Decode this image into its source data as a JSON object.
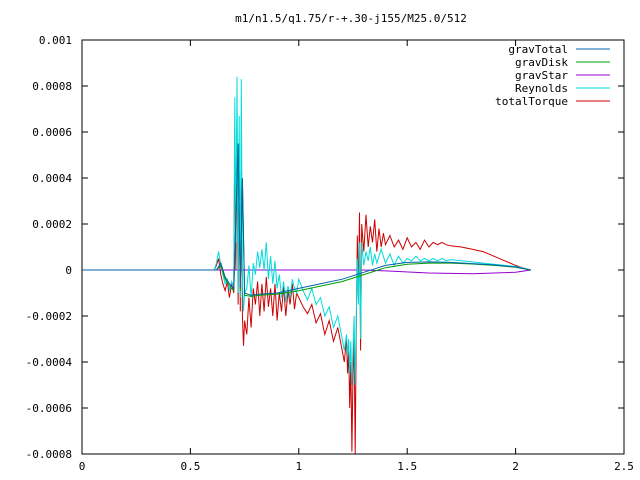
{
  "chart_data": {
    "type": "line",
    "title": "m1/n1.5/q1.75/r-+.30-j155/M25.0/512",
    "xlabel": "",
    "ylabel": "",
    "xlim": [
      0,
      2.5
    ],
    "ylim": [
      -0.0008,
      0.001
    ],
    "grid": false,
    "legend_position": "top-right",
    "x_ticks": [
      {
        "value": 0,
        "label": "0"
      },
      {
        "value": 0.5,
        "label": "0.5"
      },
      {
        "value": 1,
        "label": "1"
      },
      {
        "value": 1.5,
        "label": "1.5"
      },
      {
        "value": 2,
        "label": "2"
      },
      {
        "value": 2.5,
        "label": "2.5"
      }
    ],
    "y_ticks": [
      {
        "value": -0.0008,
        "label": "-0.0008"
      },
      {
        "value": -0.0006,
        "label": "-0.0006"
      },
      {
        "value": -0.0004,
        "label": "-0.0004"
      },
      {
        "value": -0.0002,
        "label": "-0.0002"
      },
      {
        "value": 0,
        "label": "0"
      },
      {
        "value": 0.0002,
        "label": "0.0002"
      },
      {
        "value": 0.0004,
        "label": "0.0004"
      },
      {
        "value": 0.0006,
        "label": "0.0006"
      },
      {
        "value": 0.0008,
        "label": "0.0008"
      },
      {
        "value": 0.001,
        "label": "0.001"
      }
    ],
    "series": [
      {
        "name": "gravTotal",
        "color": "#0060ad",
        "x": [
          0,
          0.62,
          0.64,
          0.66,
          0.68,
          0.7,
          0.72,
          0.73,
          0.74,
          0.75,
          0.78,
          0.82,
          0.9,
          1.0,
          1.1,
          1.2,
          1.3,
          1.4,
          1.5,
          1.6,
          1.7,
          1.8,
          1.9,
          2.0,
          2.04,
          2.07
        ],
        "y": [
          0,
          0,
          3e-05,
          -3e-05,
          -6e-05,
          -8e-05,
          0.00055,
          -8e-05,
          0.0004,
          -0.0001,
          -0.00011,
          -0.000105,
          -0.0001,
          -8e-05,
          -6e-05,
          -4e-05,
          -1e-05,
          2e-05,
          3.3e-05,
          3.5e-05,
          3.3e-05,
          2.8e-05,
          2.2e-05,
          1.3e-05,
          6e-06,
          0
        ]
      },
      {
        "name": "gravDisk",
        "color": "#009e00",
        "x": [
          0,
          0.62,
          0.64,
          0.66,
          0.68,
          0.7,
          0.72,
          0.73,
          0.74,
          0.75,
          0.78,
          0.82,
          0.9,
          1.0,
          1.1,
          1.2,
          1.3,
          1.4,
          1.5,
          1.6,
          1.7,
          1.8,
          1.9,
          2.0,
          2.04,
          2.07
        ],
        "y": [
          0,
          0,
          2e-05,
          -4e-05,
          -7e-05,
          -9e-05,
          0.00054,
          -9e-05,
          0.00039,
          -0.00011,
          -0.000115,
          -0.00011,
          -0.000105,
          -9e-05,
          -7e-05,
          -5e-05,
          -2e-05,
          1e-05,
          2.5e-05,
          3e-05,
          3e-05,
          2.6e-05,
          2e-05,
          1.2e-05,
          5e-06,
          0
        ]
      },
      {
        "name": "gravStar",
        "color": "#9400d3",
        "x": [
          0,
          0.62,
          0.8,
          1.0,
          1.2,
          1.3,
          1.4,
          1.6,
          1.8,
          2.0,
          2.07
        ],
        "y": [
          0,
          0,
          0,
          0,
          0,
          0,
          -4e-06,
          -1.3e-05,
          -1.6e-05,
          -1e-05,
          0
        ]
      },
      {
        "name": "Reynolds",
        "color": "#00dcdc",
        "x": [
          0,
          0.61,
          0.62,
          0.63,
          0.64,
          0.65,
          0.66,
          0.67,
          0.68,
          0.69,
          0.7,
          0.705,
          0.71,
          0.715,
          0.72,
          0.725,
          0.73,
          0.735,
          0.74,
          0.745,
          0.75,
          0.76,
          0.77,
          0.78,
          0.79,
          0.8,
          0.81,
          0.82,
          0.83,
          0.84,
          0.85,
          0.86,
          0.87,
          0.88,
          0.89,
          0.9,
          0.91,
          0.92,
          0.93,
          0.94,
          0.95,
          0.96,
          0.97,
          0.98,
          0.99,
          1.0,
          1.02,
          1.04,
          1.06,
          1.08,
          1.1,
          1.12,
          1.14,
          1.16,
          1.18,
          1.2,
          1.21,
          1.22,
          1.225,
          1.23,
          1.235,
          1.24,
          1.245,
          1.25,
          1.255,
          1.26,
          1.265,
          1.27,
          1.275,
          1.28,
          1.285,
          1.29,
          1.3,
          1.31,
          1.32,
          1.33,
          1.34,
          1.35,
          1.36,
          1.38,
          1.4,
          1.42,
          1.44,
          1.46,
          1.48,
          1.5,
          1.52,
          1.54,
          1.56,
          1.58,
          1.6,
          1.62,
          1.64,
          1.66,
          1.68,
          1.7,
          1.75,
          1.8,
          1.85,
          1.9,
          1.95,
          2.0,
          2.03,
          2.05,
          2.07
        ],
        "y": [
          0,
          0,
          3e-05,
          8e-05,
          2e-05,
          -2e-05,
          -6e-05,
          -4e-05,
          -9e-05,
          -5e-05,
          -7e-05,
          0.00075,
          0.00012,
          0.00084,
          -0.0001,
          0.00067,
          -0.00012,
          0.00083,
          -5e-05,
          -0.00018,
          -0.0001,
          -8e-05,
          2e-05,
          -0.00012,
          3e-05,
          -2e-05,
          8e-05,
          1e-05,
          9e-05,
          0.0,
          0.00012,
          -4e-05,
          6e-05,
          -6e-05,
          4e-05,
          -8e-05,
          -2e-05,
          -0.00012,
          -5e-05,
          -0.00014,
          -7e-05,
          -0.00012,
          -4e-05,
          -8e-05,
          -0.0001,
          -4e-05,
          -9e-05,
          -0.00013,
          -8e-05,
          -0.00015,
          -0.00012,
          -0.0002,
          -0.00016,
          -0.00025,
          -0.0002,
          -0.0003,
          -0.00035,
          -0.00028,
          -0.00037,
          -0.0003,
          -0.00045,
          -0.00031,
          -0.0005,
          -0.00035,
          -0.0002,
          -0.0005,
          -0.0002,
          5e-05,
          -0.00015,
          0.00012,
          -0.0003,
          0.00012,
          2e-05,
          8e-05,
          4e-05,
          0.0001,
          2e-05,
          7e-05,
          3e-05,
          9e-05,
          3e-05,
          7e-05,
          2e-05,
          6e-05,
          3e-05,
          5e-05,
          4e-05,
          6e-05,
          4e-05,
          5e-05,
          4e-05,
          5e-05,
          4e-05,
          5e-05,
          4e-05,
          4.5e-05,
          4e-05,
          3.5e-05,
          3e-05,
          2.5e-05,
          2e-05,
          1.5e-05,
          1e-05,
          5e-06,
          0
        ]
      },
      {
        "name": "totalTorque",
        "color": "#cc0000",
        "x": [
          0,
          0.61,
          0.62,
          0.63,
          0.64,
          0.65,
          0.66,
          0.67,
          0.68,
          0.69,
          0.7,
          0.705,
          0.71,
          0.715,
          0.72,
          0.725,
          0.73,
          0.735,
          0.74,
          0.745,
          0.75,
          0.76,
          0.77,
          0.78,
          0.79,
          0.8,
          0.81,
          0.82,
          0.83,
          0.84,
          0.85,
          0.86,
          0.87,
          0.88,
          0.89,
          0.9,
          0.91,
          0.92,
          0.93,
          0.94,
          0.95,
          0.96,
          0.97,
          0.98,
          0.99,
          1.0,
          1.02,
          1.04,
          1.06,
          1.08,
          1.1,
          1.12,
          1.14,
          1.16,
          1.18,
          1.2,
          1.21,
          1.22,
          1.225,
          1.23,
          1.235,
          1.24,
          1.245,
          1.25,
          1.255,
          1.26,
          1.265,
          1.27,
          1.275,
          1.28,
          1.285,
          1.29,
          1.3,
          1.31,
          1.32,
          1.33,
          1.34,
          1.35,
          1.36,
          1.37,
          1.38,
          1.39,
          1.4,
          1.42,
          1.44,
          1.46,
          1.48,
          1.5,
          1.52,
          1.54,
          1.56,
          1.58,
          1.6,
          1.62,
          1.64,
          1.66,
          1.68,
          1.7,
          1.75,
          1.8,
          1.85,
          1.9,
          1.95,
          2.0,
          2.03,
          2.05,
          2.07
        ],
        "y": [
          0,
          0,
          2e-05,
          5e-05,
          -2e-05,
          -6e-05,
          -9e-05,
          -5e-05,
          -0.00012,
          -6e-05,
          -0.0001,
          0.00062,
          0.0,
          0.00065,
          -0.00015,
          0.00055,
          -0.00018,
          0.0006,
          -0.0002,
          -0.00033,
          -0.00022,
          -0.00028,
          -0.00012,
          -0.00025,
          -8e-05,
          -0.00015,
          -5e-05,
          -0.0002,
          -6e-05,
          -0.00018,
          -3e-05,
          -0.00016,
          -8e-05,
          -0.0002,
          -6e-05,
          -0.00022,
          -0.0001,
          -0.00018,
          -7e-05,
          -0.0002,
          -9e-05,
          -0.00015,
          -6e-05,
          -0.00017,
          -0.0001,
          -0.00012,
          -0.00016,
          -0.00019,
          -0.00015,
          -0.00023,
          -0.00019,
          -0.00028,
          -0.00022,
          -0.00031,
          -0.00025,
          -0.00035,
          -0.0004,
          -0.0003,
          -0.00045,
          -0.00035,
          -0.0006,
          -0.0004,
          -0.00079,
          -0.00045,
          -0.0003,
          -0.0008,
          -0.00025,
          0.00015,
          -0.0001,
          0.00025,
          -0.00035,
          0.0002,
          8e-05,
          0.00024,
          0.0001,
          0.00019,
          0.00012,
          0.00022,
          8e-05,
          0.00018,
          0.0001,
          0.00016,
          0.00011,
          0.00015,
          0.0001,
          0.00013,
          9e-05,
          0.00014,
          0.0001,
          0.00012,
          9e-05,
          0.00013,
          0.0001,
          0.00012,
          0.00011,
          0.00012,
          0.00011,
          0.000105,
          0.0001,
          9e-05,
          8e-05,
          6e-05,
          4e-05,
          2e-05,
          1e-05,
          5e-06,
          0
        ]
      }
    ]
  }
}
